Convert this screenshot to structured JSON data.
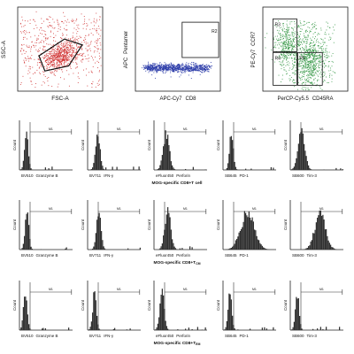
{
  "chart_data": [
    {
      "type": "scatter",
      "panel": "fsc-ssc",
      "xlabel": "FSC-A",
      "ylabel": "SSC-A",
      "dot_color": "#d23a3a",
      "dot_count": 1100,
      "gate_points": [
        [
          0.25,
          0.42
        ],
        [
          0.55,
          0.62
        ],
        [
          0.76,
          0.55
        ],
        [
          0.6,
          0.3
        ],
        [
          0.32,
          0.24
        ]
      ],
      "xlim": [
        0,
        1
      ],
      "ylim": [
        0,
        1
      ]
    },
    {
      "type": "scatter",
      "panel": "cd8-pentamer",
      "xlabel": "APC-Cy7",
      "xlabel2": "CD8",
      "ylabel": "APC",
      "ylabel2": "Pentamer",
      "gate_label": "R2",
      "dot_color": "#2a3aa8",
      "dot_count": 900,
      "gate": {
        "x0": 0.55,
        "x1": 0.98,
        "y0": 0.4,
        "y1": 0.82
      },
      "xlim": [
        0,
        1
      ],
      "ylim": [
        0,
        1
      ]
    },
    {
      "type": "scatter",
      "panel": "cd45ra-ccr7",
      "xlabel": "PerCP-Cy5.5",
      "xlabel2": "CD45RA",
      "ylabel": "PE-Cy7",
      "ylabel2": "CCR7",
      "dot_color": "#3a9a4a",
      "dot_count": 1200,
      "gates": [
        {
          "label": "R3",
          "x0": 0.12,
          "x1": 0.4,
          "y0": 0.47,
          "y1": 0.86
        },
        {
          "label": "R4",
          "x0": 0.12,
          "x1": 0.4,
          "y0": 0.07,
          "y1": 0.46
        },
        {
          "label": "R5",
          "x0": 0.41,
          "x1": 0.7,
          "y0": 0.07,
          "y1": 0.46
        }
      ],
      "xlim": [
        0,
        1
      ],
      "ylim": [
        0,
        1
      ]
    }
  ],
  "histograms": {
    "ylabel": "Count",
    "marker_label": "M1",
    "marker_range": [
      0.2,
      0.98
    ],
    "columns": [
      {
        "channel": "BV510",
        "marker": "Granzyme B"
      },
      {
        "channel": "BV711",
        "marker": "IFN-γ"
      },
      {
        "channel": "eFluor450",
        "marker": "Perforin"
      },
      {
        "channel": "SB645",
        "marker": "PD-1"
      },
      {
        "channel": "SB600",
        "marker": "Tim-3"
      }
    ],
    "rows": [
      {
        "caption": "MOG-specific  CD8+T cell",
        "peaks": [
          0.12,
          0.18,
          0.22,
          0.15,
          0.2
        ],
        "spreads": [
          0.05,
          0.06,
          0.08,
          0.05,
          0.09
        ]
      },
      {
        "caption": "MOG-specific  CD8+T",
        "caption_sub": "CM",
        "peaks": [
          0.13,
          0.2,
          0.25,
          0.45,
          0.55
        ],
        "spreads": [
          0.05,
          0.06,
          0.08,
          0.18,
          0.14
        ]
      },
      {
        "caption": "MOG-specific  CD8+T",
        "caption_sub": "EM",
        "peaks": [
          0.1,
          0.12,
          0.14,
          0.12,
          0.12
        ],
        "spreads": [
          0.05,
          0.05,
          0.06,
          0.05,
          0.05
        ]
      }
    ]
  }
}
